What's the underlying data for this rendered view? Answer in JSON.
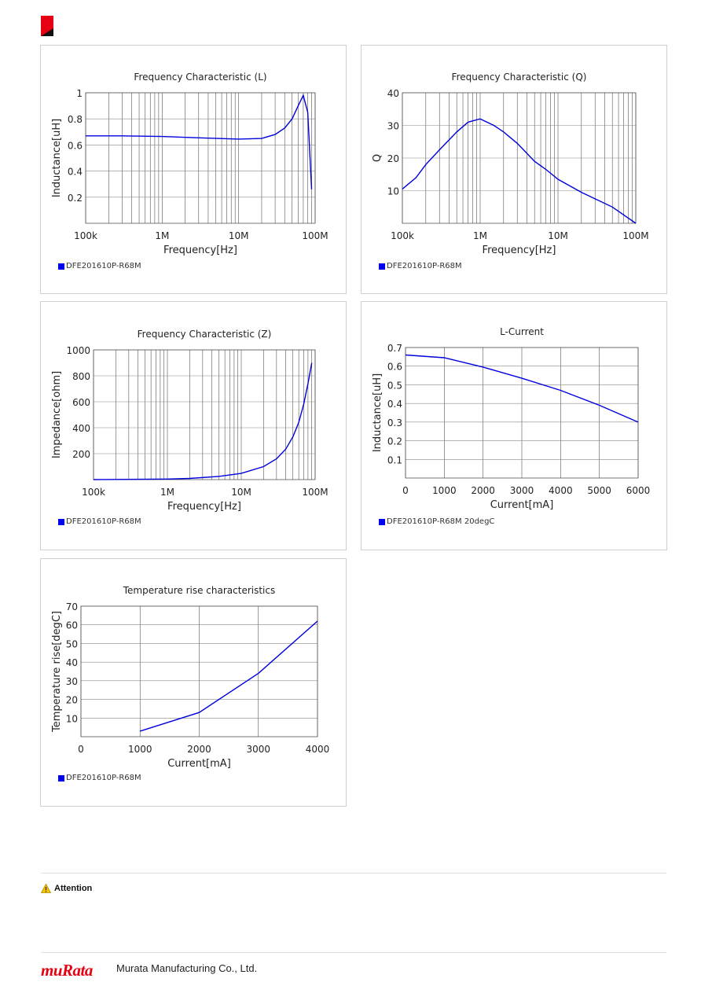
{
  "header": {
    "logo_icon": "murata-red-mark-icon"
  },
  "charts": [
    {
      "id": "freq-l",
      "title": "Frequency   Characteristic (L)",
      "legend": "DFE201610P-R68M",
      "chart_data": {
        "type": "line",
        "xscale": "log",
        "xlim": [
          100000,
          100000000
        ],
        "ylim": [
          0,
          1
        ],
        "xticks": [
          {
            "v": 100000,
            "label": "100k"
          },
          {
            "v": 1000000,
            "label": "1M"
          },
          {
            "v": 10000000,
            "label": "10M"
          },
          {
            "v": 100000000,
            "label": "100M"
          }
        ],
        "yticks": [
          {
            "v": 0.2,
            "label": "0.2"
          },
          {
            "v": 0.4,
            "label": "0.4"
          },
          {
            "v": 0.6,
            "label": "0.6"
          },
          {
            "v": 0.8,
            "label": "0.8"
          },
          {
            "v": 1,
            "label": "1"
          }
        ],
        "xlabel": "Frequency[Hz]",
        "ylabel": "Inductance[uH]",
        "series": [
          {
            "name": "DFE201610P-R68M",
            "x": [
              100000,
              300000,
              1000000,
              3000000,
              10000000,
              20000000,
              30000000,
              40000000,
              50000000,
              60000000,
              70000000,
              80000000,
              85000000,
              90000000
            ],
            "y": [
              0.67,
              0.67,
              0.665,
              0.655,
              0.645,
              0.65,
              0.68,
              0.73,
              0.8,
              0.9,
              0.98,
              0.85,
              0.55,
              0.26
            ]
          }
        ]
      }
    },
    {
      "id": "freq-q",
      "title": "Frequency   Characteristic (Q)",
      "legend": "DFE201610P-R68M",
      "chart_data": {
        "type": "line",
        "xscale": "log",
        "xlim": [
          100000,
          100000000
        ],
        "ylim": [
          0,
          40
        ],
        "xticks": [
          {
            "v": 100000,
            "label": "100k"
          },
          {
            "v": 1000000,
            "label": "1M"
          },
          {
            "v": 10000000,
            "label": "10M"
          },
          {
            "v": 100000000,
            "label": "100M"
          }
        ],
        "yticks": [
          {
            "v": 10,
            "label": "10"
          },
          {
            "v": 20,
            "label": "20"
          },
          {
            "v": 30,
            "label": "30"
          },
          {
            "v": 40,
            "label": "40"
          }
        ],
        "xlabel": "Frequency[Hz]",
        "ylabel": "Q",
        "series": [
          {
            "name": "DFE201610P-R68M",
            "x": [
              100000,
              150000,
              200000,
              300000,
              500000,
              700000,
              1000000,
              1500000,
              2000000,
              3000000,
              5000000,
              7000000,
              10000000,
              20000000,
              50000000,
              100000000
            ],
            "y": [
              10.5,
              14,
              18,
              22.5,
              28,
              31,
              32,
              30,
              28,
              24.5,
              19,
              16.5,
              13.5,
              9.5,
              5,
              0
            ]
          }
        ]
      }
    },
    {
      "id": "freq-z",
      "title": "Frequency   Characteristic (Z)",
      "legend": "DFE201610P-R68M",
      "chart_data": {
        "type": "line",
        "xscale": "log",
        "xlim": [
          100000,
          100000000
        ],
        "ylim": [
          0,
          1000
        ],
        "xticks": [
          {
            "v": 100000,
            "label": "100k"
          },
          {
            "v": 1000000,
            "label": "1M"
          },
          {
            "v": 10000000,
            "label": "10M"
          },
          {
            "v": 100000000,
            "label": "100M"
          }
        ],
        "yticks": [
          {
            "v": 200,
            "label": "200"
          },
          {
            "v": 400,
            "label": "400"
          },
          {
            "v": 600,
            "label": "600"
          },
          {
            "v": 800,
            "label": "800"
          },
          {
            "v": 1000,
            "label": "1000"
          }
        ],
        "xlabel": "Frequency[Hz]",
        "ylabel": "Impedance[ohm]",
        "series": [
          {
            "name": "DFE201610P-R68M",
            "x": [
              100000,
              1000000,
              2000000,
              5000000,
              10000000,
              20000000,
              30000000,
              40000000,
              50000000,
              60000000,
              70000000,
              80000000,
              90000000
            ],
            "y": [
              0,
              4,
              9,
              25,
              48,
              100,
              160,
              235,
              330,
              440,
              580,
              740,
              900
            ]
          }
        ]
      }
    },
    {
      "id": "l-current",
      "title": "L-Current",
      "legend": "DFE201610P-R68M 20degC",
      "chart_data": {
        "type": "line",
        "xscale": "linear",
        "xlim": [
          0,
          6000
        ],
        "ylim": [
          0,
          0.7
        ],
        "xticks": [
          {
            "v": 0,
            "label": "0"
          },
          {
            "v": 1000,
            "label": "1000"
          },
          {
            "v": 2000,
            "label": "2000"
          },
          {
            "v": 3000,
            "label": "3000"
          },
          {
            "v": 4000,
            "label": "4000"
          },
          {
            "v": 5000,
            "label": "5000"
          },
          {
            "v": 6000,
            "label": "6000"
          }
        ],
        "yticks": [
          {
            "v": 0.1,
            "label": "0.1"
          },
          {
            "v": 0.2,
            "label": "0.2"
          },
          {
            "v": 0.3,
            "label": "0.3"
          },
          {
            "v": 0.4,
            "label": "0.4"
          },
          {
            "v": 0.5,
            "label": "0.5"
          },
          {
            "v": 0.6,
            "label": "0.6"
          },
          {
            "v": 0.7,
            "label": "0.7"
          }
        ],
        "xlabel": "Current[mA]",
        "ylabel": "Inductance[uH]",
        "series": [
          {
            "name": "DFE201610P-R68M 20degC",
            "x": [
              0,
              1000,
              2000,
              3000,
              4000,
              5000,
              6000
            ],
            "y": [
              0.66,
              0.645,
              0.595,
              0.535,
              0.47,
              0.39,
              0.3
            ]
          }
        ]
      }
    },
    {
      "id": "temp-rise",
      "title": "Temperature rise characteristics",
      "legend": "DFE201610P-R68M",
      "chart_data": {
        "type": "line",
        "xscale": "linear",
        "xlim": [
          0,
          4000
        ],
        "ylim": [
          0,
          70
        ],
        "xticks": [
          {
            "v": 0,
            "label": "0"
          },
          {
            "v": 1000,
            "label": "1000"
          },
          {
            "v": 2000,
            "label": "2000"
          },
          {
            "v": 3000,
            "label": "3000"
          },
          {
            "v": 4000,
            "label": "4000"
          }
        ],
        "yticks": [
          {
            "v": 10,
            "label": "10"
          },
          {
            "v": 20,
            "label": "20"
          },
          {
            "v": 30,
            "label": "30"
          },
          {
            "v": 40,
            "label": "40"
          },
          {
            "v": 50,
            "label": "50"
          },
          {
            "v": 60,
            "label": "60"
          },
          {
            "v": 70,
            "label": "70"
          }
        ],
        "xlabel": "Current[mA]",
        "ylabel": "Temperature rise[degC]",
        "series": [
          {
            "name": "DFE201610P-R68M",
            "x": [
              1000,
              2000,
              3000,
              4000
            ],
            "y": [
              3,
              13,
              34,
              62
            ]
          }
        ]
      }
    }
  ],
  "attention": {
    "label": "Attention",
    "icon": "warning-icon"
  },
  "footer": {
    "logo": "muRata",
    "company": "Murata Manufacturing Co., Ltd."
  }
}
